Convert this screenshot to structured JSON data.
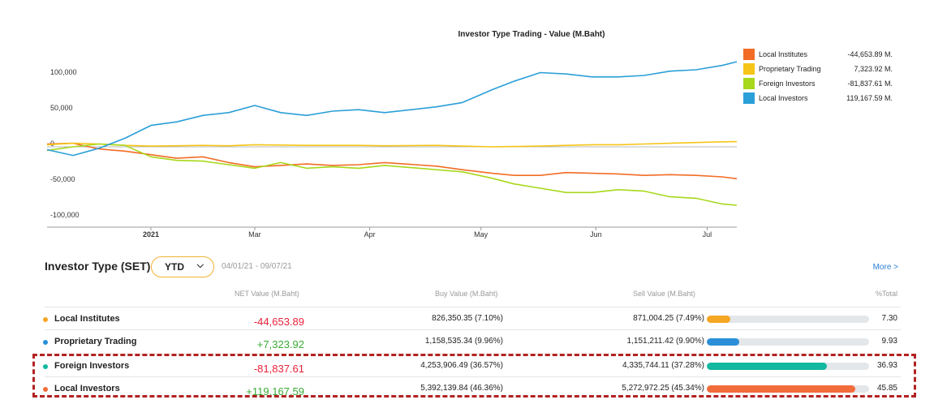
{
  "chart_data": {
    "type": "line",
    "title": "Investor Type Trading - Value (M.Baht)",
    "xlabel": "",
    "ylabel": "",
    "x_ticks": [
      "2021",
      "Mar",
      "Apr",
      "May",
      "Jun",
      "Jul"
    ],
    "x_dates": [
      "2021-01-04",
      "2021-01-11",
      "2021-01-18",
      "2021-01-25",
      "2021-02-01",
      "2021-02-08",
      "2021-02-15",
      "2021-02-22",
      "2021-03-01",
      "2021-03-08",
      "2021-03-15",
      "2021-03-22",
      "2021-03-29",
      "2021-04-05",
      "2021-04-19",
      "2021-04-26",
      "2021-05-04",
      "2021-05-10",
      "2021-05-17",
      "2021-05-24",
      "2021-05-31",
      "2021-06-07",
      "2021-06-14",
      "2021-06-21",
      "2021-06-28",
      "2021-07-05",
      "2021-07-09"
    ],
    "y_ticks": [
      "100,000",
      "50,000",
      "0",
      "-50,000",
      "-100,000"
    ],
    "ylim": [
      -100000,
      130000
    ],
    "grid": false,
    "legend_position": "right",
    "series": [
      {
        "name": "Local Institutes",
        "color": "#f26c25",
        "final_label": "-44,653.89 M.",
        "values": [
          4000,
          5000,
          -3000,
          -6000,
          -11000,
          -16000,
          -14000,
          -22000,
          -28000,
          -26000,
          -24000,
          -26000,
          -25000,
          -22000,
          -27000,
          -32000,
          -37000,
          -40000,
          -40000,
          -36000,
          -37000,
          -38000,
          -40000,
          -39000,
          -40000,
          -42000,
          -44654
        ]
      },
      {
        "name": "Proprietary Trading",
        "color": "#f5c518",
        "final_label": "7,323.92 M.",
        "values": [
          3000,
          5000,
          4000,
          2000,
          1000,
          1500,
          2000,
          1500,
          3000,
          2500,
          2000,
          2000,
          2000,
          1500,
          2000,
          1000,
          0,
          500,
          1000,
          2000,
          3000,
          3000,
          4000,
          5000,
          6000,
          7000,
          7324
        ]
      },
      {
        "name": "Foreign Investors",
        "color": "#a8d81a",
        "final_label": "-81,837.61 M.",
        "values": [
          -5000,
          0,
          4000,
          2000,
          -14000,
          -19000,
          -20000,
          -25000,
          -30000,
          -22000,
          -30000,
          -28000,
          -30000,
          -26000,
          -32000,
          -35000,
          -44000,
          -52000,
          -58000,
          -64000,
          -64000,
          -60000,
          -62000,
          -70000,
          -72000,
          -80000,
          -81838
        ]
      },
      {
        "name": "Local Investors",
        "color": "#2a9fd8",
        "final_label": "119,167.59 M.",
        "values": [
          -4000,
          -12000,
          -2000,
          12000,
          30000,
          35000,
          44000,
          48000,
          58000,
          48000,
          44000,
          50000,
          52000,
          48000,
          56000,
          62000,
          80000,
          92000,
          104000,
          102000,
          98000,
          98000,
          100000,
          106000,
          108000,
          114000,
          119168
        ]
      }
    ]
  },
  "legend": [
    {
      "name": "Local Institutes",
      "value": "-44,653.89 M.",
      "color": "#f26c25"
    },
    {
      "name": "Proprietary Trading",
      "value": "7,323.92 M.",
      "color": "#f5c518"
    },
    {
      "name": "Foreign Investors",
      "value": "-81,837.61 M.",
      "color": "#a8d81a"
    },
    {
      "name": "Local Investors",
      "value": "119,167.59 M.",
      "color": "#2a9fd8"
    }
  ],
  "table": {
    "title": "Investor Type (SET)",
    "period": "YTD",
    "period_icon": "chevron-down-icon",
    "date_range": "04/01/21 - 09/07/21",
    "more": "More >",
    "columns": {
      "net": "NET Value (M.Baht)",
      "buy": "Buy Value (M.Baht)",
      "sell": "Sell Value (M.Baht)",
      "total": "%Total"
    },
    "rows": [
      {
        "name": "Local Institutes",
        "net": "-44,653.89",
        "buy": "826,350.35 (7.10%)",
        "sell": "871,004.25 (7.49%)",
        "pct": "7.30",
        "pct_value": 7.3,
        "dot": "#f5a623",
        "bar": "#f5a623",
        "net_color": "#e8213a"
      },
      {
        "name": "Proprietary Trading",
        "net": "+7,323.92",
        "buy": "1,158,535.34 (9.96%)",
        "sell": "1,151,211.42 (9.90%)",
        "pct": "9.93",
        "pct_value": 9.93,
        "dot": "#2a8fd8",
        "bar": "#2a8fd8",
        "net_color": "#3aaa35"
      },
      {
        "name": "Foreign Investors",
        "net": "-81,837.61",
        "buy": "4,253,906.49 (36.57%)",
        "sell": "4,335,744.11 (37.28%)",
        "pct": "36.93",
        "pct_value": 36.93,
        "dot": "#12b8a0",
        "bar": "#12b8a0",
        "net_color": "#e8213a"
      },
      {
        "name": "Local Investors",
        "net": "+119,167.59",
        "buy": "5,392,139.84 (46.36%)",
        "sell": "5,272,972.25 (45.34%)",
        "pct": "45.85",
        "pct_value": 45.85,
        "dot": "#f26c3a",
        "bar": "#f26c3a",
        "net_color": "#3aaa35"
      }
    ]
  }
}
